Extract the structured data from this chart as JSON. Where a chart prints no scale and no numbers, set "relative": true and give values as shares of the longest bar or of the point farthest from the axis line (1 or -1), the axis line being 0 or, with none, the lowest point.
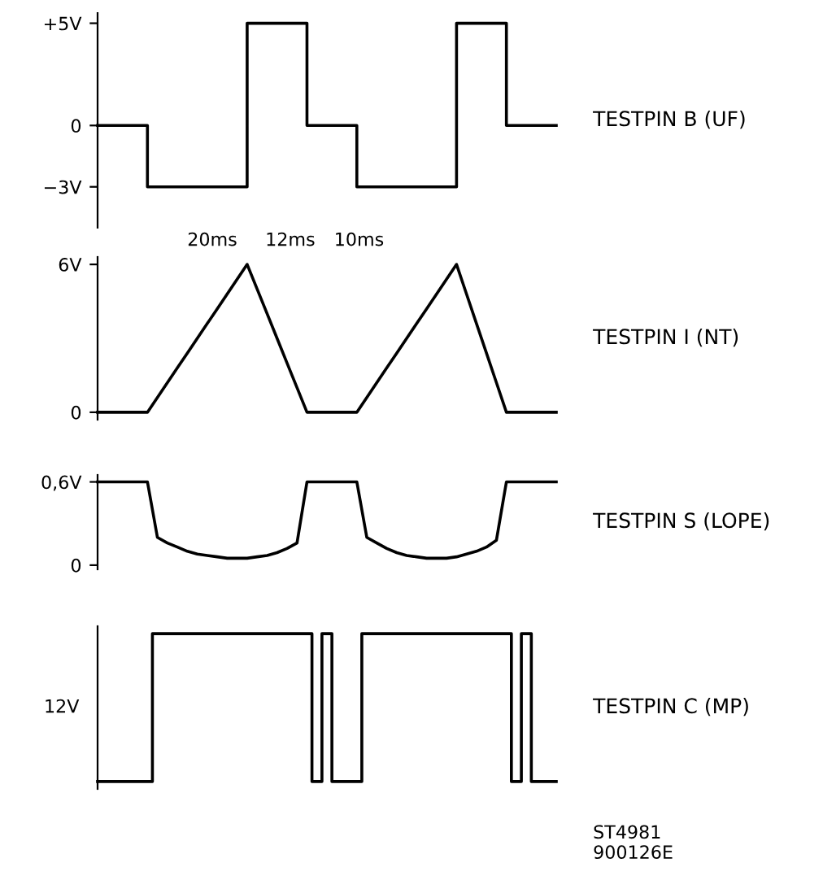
{
  "chart_data": [
    {
      "type": "step",
      "ylim": [
        -5,
        5.5
      ],
      "yticks": [
        {
          "value": 5,
          "label": "+5V"
        },
        {
          "value": 0,
          "label": "0"
        },
        {
          "value": -3,
          "label": "−3V"
        }
      ],
      "tick_labels": "y",
      "grid": false,
      "legend": false,
      "categories": [
        null,
        null,
        null,
        null,
        null,
        null,
        null,
        null,
        null,
        null,
        null,
        null,
        null,
        null,
        null,
        null,
        null,
        null,
        null,
        null,
        null,
        null,
        null,
        null,
        null,
        null,
        null,
        null,
        null,
        null,
        null,
        null,
        null,
        null,
        null,
        null,
        null,
        null,
        null,
        null,
        null,
        null,
        null,
        null,
        null,
        null,
        null
      ],
      "series": [
        {
          "name": "TESTPIN B (UF)",
          "color": "#000000",
          "values": [
            0,
            0,
            0,
            0,
            0,
            -3,
            -3,
            -3,
            -3,
            -3,
            -3,
            -3,
            -3,
            -3,
            -3,
            5,
            5,
            5,
            5,
            5,
            5,
            0,
            0,
            0,
            0,
            0,
            -3,
            -3,
            -3,
            -3,
            -3,
            -3,
            -3,
            -3,
            -3,
            -3,
            5,
            5,
            5,
            5,
            5,
            0,
            0,
            0,
            0,
            0,
            0
          ]
        }
      ],
      "annotations": [
        "20ms",
        "12ms",
        "10ms"
      ]
    },
    {
      "type": "line",
      "ylim": [
        -0.3,
        6.3
      ],
      "yticks": [
        {
          "value": 6,
          "label": "6V"
        },
        {
          "value": 0,
          "label": "0"
        }
      ],
      "tick_labels": "y",
      "grid": false,
      "legend": false,
      "categories": [
        null,
        null,
        null,
        null,
        null,
        null,
        null,
        null,
        null,
        null,
        null,
        null,
        null,
        null,
        null,
        null,
        null,
        null,
        null,
        null,
        null,
        null,
        null,
        null,
        null,
        null,
        null,
        null,
        null,
        null,
        null,
        null,
        null,
        null,
        null,
        null,
        null,
        null,
        null,
        null,
        null,
        null,
        null,
        null,
        null,
        null,
        null
      ],
      "series": [
        {
          "name": "TESTPIN I (NT)",
          "color": "#000000",
          "values": [
            0,
            0,
            0,
            0,
            0,
            0,
            0.6,
            1.2,
            1.8,
            2.4,
            3,
            3.6,
            4.2,
            4.8,
            5.4,
            6,
            5,
            4,
            3,
            2,
            1,
            0,
            0,
            0,
            0,
            0,
            0,
            0.6,
            1.2,
            1.8,
            2.4,
            3,
            3.6,
            4.2,
            4.8,
            5.4,
            6,
            4.8,
            3.6,
            2.4,
            1.2,
            0,
            0,
            0,
            0,
            0,
            0
          ]
        }
      ]
    },
    {
      "type": "line",
      "ylim": [
        -0.03,
        0.65
      ],
      "yticks": [
        {
          "value": 0.6,
          "label": "0,6V"
        },
        {
          "value": 0,
          "label": "0"
        }
      ],
      "tick_labels": "y",
      "grid": false,
      "legend": false,
      "categories": [
        null,
        null,
        null,
        null,
        null,
        null,
        null,
        null,
        null,
        null,
        null,
        null,
        null,
        null,
        null,
        null,
        null,
        null,
        null,
        null,
        null,
        null,
        null,
        null,
        null,
        null,
        null,
        null,
        null,
        null,
        null,
        null,
        null,
        null,
        null,
        null,
        null,
        null,
        null,
        null,
        null,
        null,
        null,
        null,
        null,
        null,
        null
      ],
      "series": [
        {
          "name": "TESTPIN S (LOPE)",
          "color": "#000000",
          "values": [
            0.6,
            0.6,
            0.6,
            0.6,
            0.6,
            0.6,
            0.2,
            0.16,
            0.13,
            0.1,
            0.08,
            0.07,
            0.06,
            0.05,
            0.05,
            0.05,
            0.06,
            0.07,
            0.09,
            0.12,
            0.16,
            0.6,
            0.6,
            0.6,
            0.6,
            0.6,
            0.6,
            0.2,
            0.16,
            0.12,
            0.09,
            0.07,
            0.06,
            0.05,
            0.05,
            0.05,
            0.06,
            0.08,
            0.1,
            0.13,
            0.18,
            0.6,
            0.6,
            0.6,
            0.6,
            0.6,
            0.6
          ]
        }
      ]
    },
    {
      "type": "step",
      "relative": true,
      "tick_labels": false,
      "grid": false,
      "legend": false,
      "categories": [
        null,
        null,
        null,
        null,
        null,
        null,
        null,
        null,
        null,
        null,
        null,
        null,
        null,
        null,
        null,
        null,
        null,
        null,
        null,
        null,
        null,
        null,
        null,
        null,
        null,
        null,
        null,
        null,
        null,
        null,
        null,
        null,
        null,
        null,
        null,
        null,
        null,
        null,
        null,
        null,
        null,
        null,
        null,
        null,
        null,
        null,
        null,
        null,
        null,
        null,
        null,
        null,
        null,
        null,
        null,
        null,
        null,
        null,
        null,
        null,
        null,
        null,
        null,
        null,
        null,
        null,
        null,
        null,
        null,
        null,
        null,
        null,
        null,
        null,
        null,
        null,
        null,
        null,
        null,
        null,
        null,
        null,
        null,
        null,
        null,
        null,
        null,
        null,
        null,
        null,
        null,
        null,
        null
      ],
      "series": [
        {
          "name": "TESTPIN C (MP)",
          "color": "#000000",
          "values": [
            0,
            0,
            0,
            0,
            0,
            0,
            0,
            0,
            0,
            0,
            0,
            1,
            1,
            1,
            1,
            1,
            1,
            1,
            1,
            1,
            1,
            1,
            1,
            1,
            1,
            1,
            1,
            1,
            1,
            1,
            1,
            1,
            1,
            1,
            1,
            1,
            1,
            1,
            1,
            1,
            1,
            1,
            1,
            0,
            0,
            1,
            1,
            0,
            0,
            0,
            0,
            0,
            0,
            1,
            1,
            1,
            1,
            1,
            1,
            1,
            1,
            1,
            1,
            1,
            1,
            1,
            1,
            1,
            1,
            1,
            1,
            1,
            1,
            1,
            1,
            1,
            1,
            1,
            1,
            1,
            1,
            1,
            1,
            0,
            0,
            1,
            1,
            0,
            0,
            0,
            0,
            0,
            0
          ]
        }
      ],
      "annotations": [
        "12V",
        "ST4981\n900126E"
      ]
    }
  ]
}
